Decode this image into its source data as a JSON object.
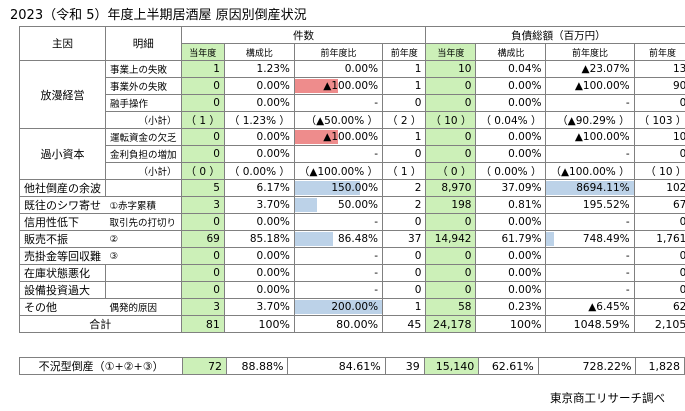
{
  "title": "2023（令和 5）年度上半期居酒屋 原因別倒産状況",
  "source": "東京商工リサーチ調べ",
  "header": {
    "cause": "主因",
    "detail": "明細",
    "group_count": "件数",
    "group_debt": "負債総額（百万円）",
    "sub_current": "当年度",
    "sub_share": "構成比",
    "sub_yoy": "前年度比",
    "sub_prev": "前年度"
  },
  "chart_data": {
    "type": "table",
    "rows": [
      {
        "cause": "放漫経営",
        "detail": "事業上の失敗",
        "count": "1",
        "count_share": "1.23%",
        "count_yoy": "0.00%",
        "count_prev": "1",
        "debt": "10",
        "debt_share": "0.04%",
        "debt_yoy": "▲23.07%",
        "debt_prev": "13"
      },
      {
        "cause": "",
        "detail": "事業外の失敗",
        "count": "0",
        "count_share": "0.00%",
        "count_yoy": "▲100.00%",
        "count_prev": "1",
        "debt": "0",
        "debt_share": "0.00%",
        "debt_yoy": "▲100.00%",
        "debt_prev": "90"
      },
      {
        "cause": "",
        "detail": "融手操作",
        "count": "0",
        "count_share": "0.00%",
        "count_yoy": "-",
        "count_prev": "0",
        "debt": "0",
        "debt_share": "0.00%",
        "debt_yoy": "-",
        "debt_prev": "0"
      },
      {
        "cause": "",
        "detail": "（小計）",
        "count": "（ 1 ）",
        "count_share": "（ 1.23% ）",
        "count_yoy": "（▲50.00% ）",
        "count_prev": "（ 2 ）",
        "debt": "（ 10 ）",
        "debt_share": "（ 0.04% ）",
        "debt_yoy": "（▲90.29% ）",
        "debt_prev": "（ 103 ）"
      },
      {
        "cause": "過小資本",
        "detail": "運転資金の欠乏",
        "count": "0",
        "count_share": "0.00%",
        "count_yoy": "▲100.00%",
        "count_prev": "1",
        "debt": "0",
        "debt_share": "0.00%",
        "debt_yoy": "▲100.00%",
        "debt_prev": "10"
      },
      {
        "cause": "",
        "detail": "金利負担の増加",
        "count": "0",
        "count_share": "0.00%",
        "count_yoy": "-",
        "count_prev": "0",
        "debt": "0",
        "debt_share": "0.00%",
        "debt_yoy": "-",
        "debt_prev": "0"
      },
      {
        "cause": "",
        "detail": "（小計）",
        "count": "（ 0 ）",
        "count_share": "（ 0.00% ）",
        "count_yoy": "（▲100.00% ）",
        "count_prev": "（ 1 ）",
        "debt": "（ 0 ）",
        "debt_share": "（ 0.00% ）",
        "debt_yoy": "（▲100.00% ）",
        "debt_prev": "（ 10 ）"
      },
      {
        "cause": "他社倒産の余波",
        "detail": "",
        "count": "5",
        "count_share": "6.17%",
        "count_yoy": "150.00%",
        "count_prev": "2",
        "debt": "8,970",
        "debt_share": "37.09%",
        "debt_yoy": "8694.11%",
        "debt_prev": "102"
      },
      {
        "cause": "既往のシワ寄せ",
        "detail": "①赤字累積",
        "count": "3",
        "count_share": "3.70%",
        "count_yoy": "50.00%",
        "count_prev": "2",
        "debt": "198",
        "debt_share": "0.81%",
        "debt_yoy": "195.52%",
        "debt_prev": "67"
      },
      {
        "cause": "信用性低下",
        "detail": "取引先の打切り",
        "count": "0",
        "count_share": "0.00%",
        "count_yoy": "-",
        "count_prev": "0",
        "debt": "0",
        "debt_share": "0.00%",
        "debt_yoy": "-",
        "debt_prev": "0"
      },
      {
        "cause": "販売不振",
        "detail": "②",
        "count": "69",
        "count_share": "85.18%",
        "count_yoy": "86.48%",
        "count_prev": "37",
        "debt": "14,942",
        "debt_share": "61.79%",
        "debt_yoy": "748.49%",
        "debt_prev": "1,761"
      },
      {
        "cause": "売掛金等回収難",
        "detail": "③",
        "count": "0",
        "count_share": "0.00%",
        "count_yoy": "-",
        "count_prev": "0",
        "debt": "0",
        "debt_share": "0.00%",
        "debt_yoy": "-",
        "debt_prev": "0"
      },
      {
        "cause": "在庫状態悪化",
        "detail": "",
        "count": "0",
        "count_share": "0.00%",
        "count_yoy": "-",
        "count_prev": "0",
        "debt": "0",
        "debt_share": "0.00%",
        "debt_yoy": "-",
        "debt_prev": "0"
      },
      {
        "cause": "設備投資過大",
        "detail": "",
        "count": "0",
        "count_share": "0.00%",
        "count_yoy": "-",
        "count_prev": "0",
        "debt": "0",
        "debt_share": "0.00%",
        "debt_yoy": "-",
        "debt_prev": "0"
      },
      {
        "cause": "その他",
        "detail": "偶発的原因",
        "count": "3",
        "count_share": "3.70%",
        "count_yoy": "200.00%",
        "count_prev": "1",
        "debt": "58",
        "debt_share": "0.23%",
        "debt_yoy": "▲6.45%",
        "debt_prev": "62"
      }
    ],
    "total": {
      "label": "合計",
      "count": "81",
      "count_share": "100%",
      "count_yoy": "80.00%",
      "count_prev": "45",
      "debt": "24,178",
      "debt_share": "100%",
      "debt_yoy": "1048.59%",
      "debt_prev": "2,105"
    },
    "recession": {
      "label": "不況型倒産（①+②+③）",
      "count": "72",
      "count_share": "88.88%",
      "count_yoy": "84.61%",
      "count_prev": "39",
      "debt": "15,140",
      "debt_share": "62.61%",
      "debt_yoy": "728.22%",
      "debt_prev": "1,828"
    },
    "count_yoy_bars": [
      {
        "row": 1,
        "value": -100.0,
        "color": "#ee8c8c"
      },
      {
        "row": 4,
        "value": -100.0,
        "color": "#ee8c8c"
      },
      {
        "row": 7,
        "value": 150.0,
        "color": "#bcd2e8"
      },
      {
        "row": 8,
        "value": 50.0,
        "color": "#bcd2e8"
      },
      {
        "row": 10,
        "value": 86.48,
        "color": "#bcd2e8"
      },
      {
        "row": 14,
        "value": 200.0,
        "color": "#bcd2e8"
      }
    ],
    "debt_yoy_bars": [
      {
        "row": 7,
        "value": 8694.11,
        "color": "#bcd2e8"
      },
      {
        "row": 10,
        "value": 748.49,
        "color": "#bcd2e8"
      }
    ]
  },
  "colors": {
    "current_year_fill": "#ccf0b8",
    "negative_bar": "#ee8c8c",
    "positive_bar": "#bcd2e8"
  }
}
